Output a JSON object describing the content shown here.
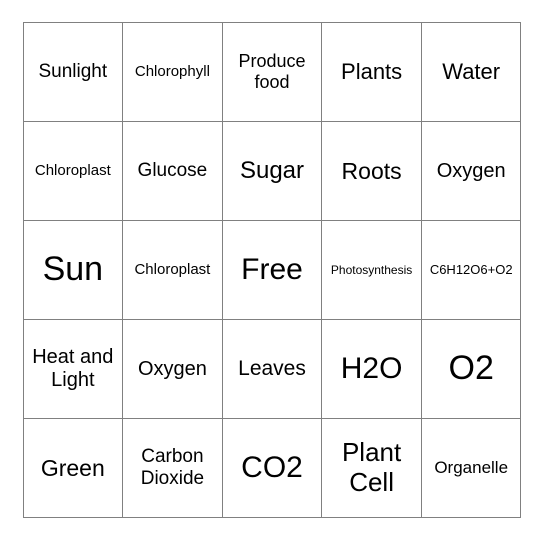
{
  "grid": {
    "type": "table",
    "rows": 5,
    "cols": 5,
    "border_color": "#808080",
    "background_color": "#ffffff",
    "text_color": "#000000",
    "cells": [
      [
        {
          "text": "Sunlight",
          "fontsize": 19
        },
        {
          "text": "Chlorophyll",
          "fontsize": 15
        },
        {
          "text": "Produce food",
          "fontsize": 18
        },
        {
          "text": "Plants",
          "fontsize": 22
        },
        {
          "text": "Water",
          "fontsize": 22
        }
      ],
      [
        {
          "text": "Chloroplast",
          "fontsize": 15
        },
        {
          "text": "Glucose",
          "fontsize": 19
        },
        {
          "text": "Sugar",
          "fontsize": 24
        },
        {
          "text": "Roots",
          "fontsize": 23
        },
        {
          "text": "Oxygen",
          "fontsize": 20
        }
      ],
      [
        {
          "text": "Sun",
          "fontsize": 34
        },
        {
          "text": "Chloroplast",
          "fontsize": 15
        },
        {
          "text": "Free",
          "fontsize": 30
        },
        {
          "text": "Photosynthesis",
          "fontsize": 12
        },
        {
          "text": "C6H12O6+O2",
          "fontsize": 13
        }
      ],
      [
        {
          "text": "Heat and Light",
          "fontsize": 20
        },
        {
          "text": "Oxygen",
          "fontsize": 20
        },
        {
          "text": "Leaves",
          "fontsize": 21
        },
        {
          "text": "H2O",
          "fontsize": 30
        },
        {
          "text": "O2",
          "fontsize": 34
        }
      ],
      [
        {
          "text": "Green",
          "fontsize": 23
        },
        {
          "text": "Carbon Dioxide",
          "fontsize": 19
        },
        {
          "text": "CO2",
          "fontsize": 30
        },
        {
          "text": "Plant Cell",
          "fontsize": 26
        },
        {
          "text": "Organelle",
          "fontsize": 17
        }
      ]
    ]
  }
}
